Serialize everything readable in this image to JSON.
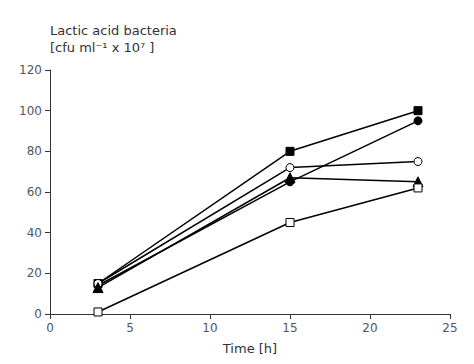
{
  "chart_data": {
    "type": "line",
    "x": [
      3,
      15,
      23
    ],
    "series": [
      {
        "values": [
          15,
          80,
          100
        ],
        "marker": "filled_square"
      },
      {
        "values": [
          14,
          65,
          95
        ],
        "marker": "filled_circle"
      },
      {
        "values": [
          15,
          72,
          75
        ],
        "marker": "open_circle"
      },
      {
        "values": [
          13,
          67,
          65
        ],
        "marker": "filled_triangle"
      },
      {
        "values": [
          1,
          45,
          62
        ],
        "marker": "open_square"
      }
    ],
    "color": "black",
    "xlim": [
      0,
      25
    ],
    "ylim": [
      0,
      120
    ],
    "xticks": [
      0,
      5,
      10,
      15,
      20,
      25
    ],
    "yticks": [
      0,
      20,
      40,
      60,
      80,
      100,
      120
    ],
    "xlabel": "Time [h]",
    "ylabel": [
      "Lactic acid bacteria",
      "[cfu ml⁻¹ x 10⁷ ]"
    ],
    "grid": false
  }
}
